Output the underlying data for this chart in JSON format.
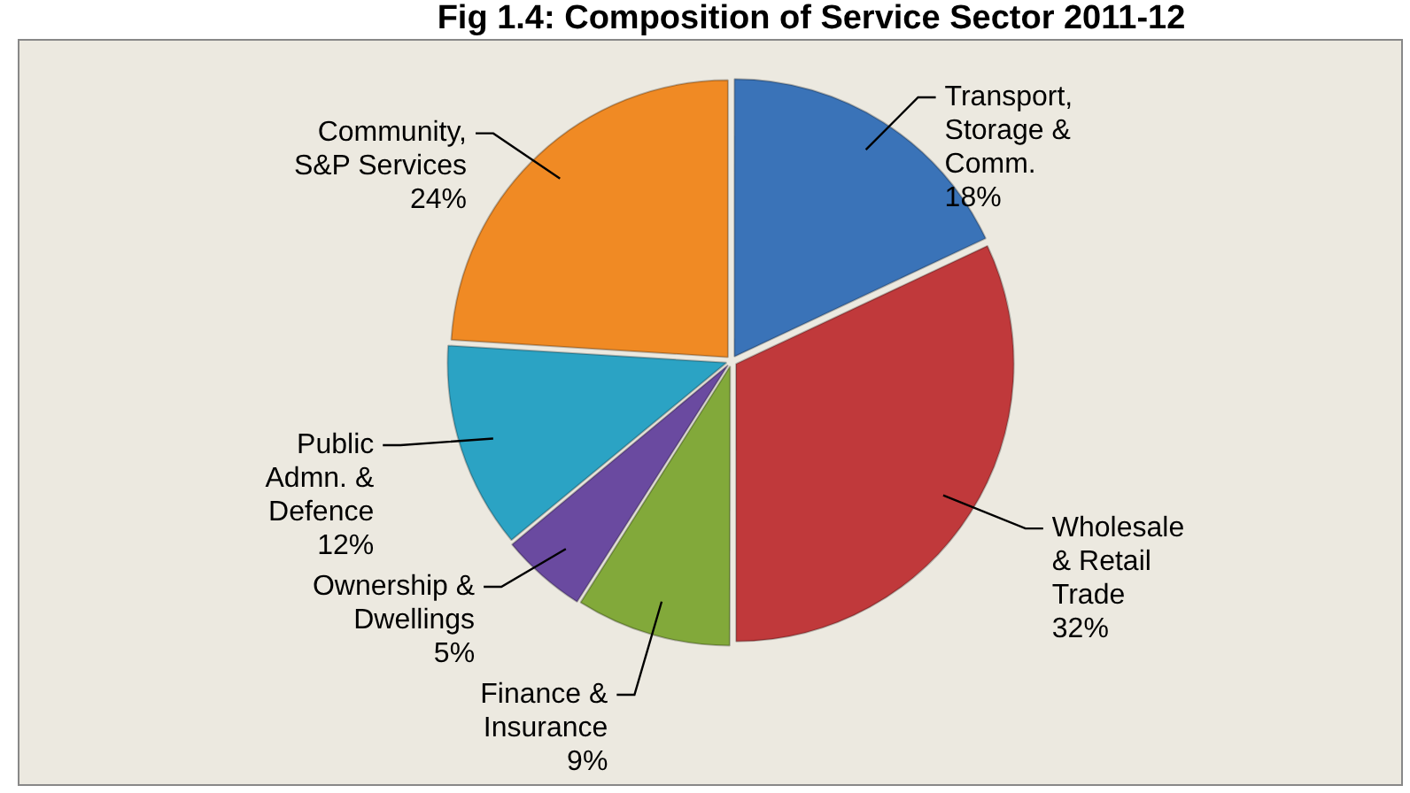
{
  "chart_data": {
    "type": "pie",
    "title": "Fig 1.4: Composition of Service Sector 2011-12",
    "categories": [
      "Transport,\nStorage &\nComm.",
      "Wholesale\n& Retail\nTrade",
      "Finance &\nInsurance",
      "Ownership &\nDwellings",
      "Public\nAdmn. &\nDefence",
      "Community,\nS&P Services"
    ],
    "values": [
      18,
      32,
      9,
      5,
      12,
      24
    ],
    "value_labels": [
      "18%",
      "32%",
      "9%",
      "5%",
      "12%",
      "24%"
    ],
    "colors": [
      "#3a73b8",
      "#c0393b",
      "#82a93a",
      "#6a4aa0",
      "#2ba3c4",
      "#f08a24"
    ],
    "legend": false
  }
}
